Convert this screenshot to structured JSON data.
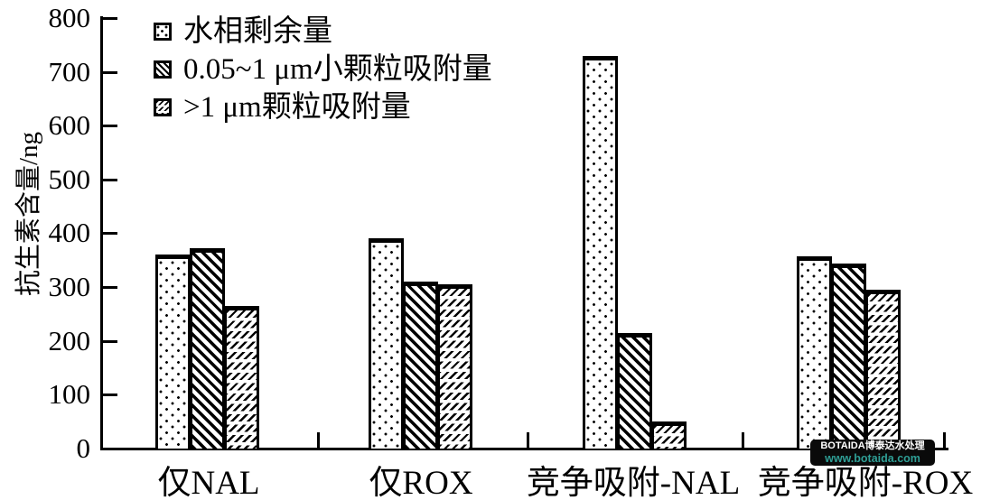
{
  "chart_data": {
    "type": "bar",
    "title": "",
    "xlabel": "",
    "ylabel": "抗生素含量/ng",
    "ylim": [
      0,
      800
    ],
    "ytick_step": 100,
    "grid": false,
    "legend_position": "top-left-inside",
    "categories": [
      "仅NAL",
      "仅ROX",
      "竞争吸附-NAL",
      "竞争吸附-ROX"
    ],
    "series": [
      {
        "name": "水相剩余量",
        "pattern": "dots",
        "values": [
          360,
          390,
          730,
          358
        ]
      },
      {
        "name": "0.05~1 μm小颗粒吸附量",
        "pattern": "diagonal-hatch",
        "values": [
          372,
          310,
          215,
          343
        ]
      },
      {
        "name": ">1 μm颗粒吸附量",
        "pattern": "dashed-rows",
        "values": [
          265,
          305,
          50,
          295
        ]
      }
    ]
  },
  "watermark": {
    "line1": "BOTAIDA博泰达水处理",
    "line2": "www.botaida.com",
    "background": "#0a0a0a",
    "text_color": "#ffffff",
    "link_color": "#2f9f96"
  },
  "colors": {
    "ink": "#000000",
    "background": "#ffffff"
  }
}
